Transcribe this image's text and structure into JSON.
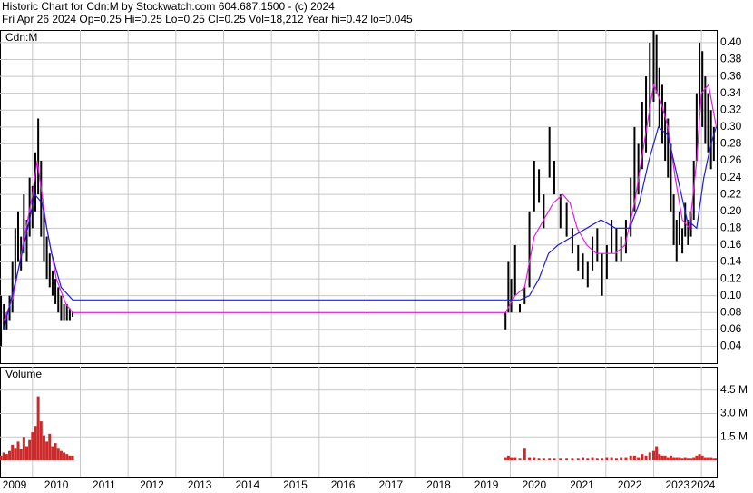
{
  "header": {
    "line1": "Historic Chart for Cdn:M by Stockwatch.com 604.687.1500 - (c) 2024",
    "line2": "Fri Apr 26 2024  Op=0.25  Hi=0.25  Lo=0.25  Cl=0.25  Vol=18,212  Year hi=0.42  lo=0.045"
  },
  "chart_data": [
    {
      "type": "ohlc",
      "label": "Cdn:M",
      "color": "#000000",
      "xlim": [
        2009.32,
        2024.32
      ],
      "xticks": [
        2010,
        2011,
        2012,
        2013,
        2014,
        2015,
        2016,
        2017,
        2018,
        2019,
        2020,
        2021,
        2022,
        2023,
        2024
      ],
      "ylim": [
        0.02,
        0.415
      ],
      "yticks": [
        {
          "value": 0.04,
          "label": "0.04"
        },
        {
          "value": 0.06,
          "label": "0.06"
        },
        {
          "value": 0.08,
          "label": "0.08"
        },
        {
          "value": 0.1,
          "label": "0.10"
        },
        {
          "value": 0.12,
          "label": "0.12"
        },
        {
          "value": 0.14,
          "label": "0.14"
        },
        {
          "value": 0.16,
          "label": "0.16"
        },
        {
          "value": 0.18,
          "label": "0.18"
        },
        {
          "value": 0.2,
          "label": "0.20"
        },
        {
          "value": 0.22,
          "label": "0.22"
        },
        {
          "value": 0.24,
          "label": "0.24"
        },
        {
          "value": 0.26,
          "label": "0.26"
        },
        {
          "value": 0.28,
          "label": "0.28"
        },
        {
          "value": 0.3,
          "label": "0.30"
        },
        {
          "value": 0.32,
          "label": "0.32"
        },
        {
          "value": 0.34,
          "label": "0.34"
        },
        {
          "value": 0.36,
          "label": "0.36"
        },
        {
          "value": 0.38,
          "label": "0.38"
        },
        {
          "value": 0.4,
          "label": "0.40"
        }
      ],
      "grid": true,
      "x": [
        2009.34,
        2009.4,
        2009.46,
        2009.52,
        2009.58,
        2009.64,
        2009.7,
        2009.76,
        2009.82,
        2009.88,
        2009.94,
        2010.0,
        2010.06,
        2010.12,
        2010.18,
        2010.24,
        2010.3,
        2010.36,
        2010.42,
        2010.48,
        2010.54,
        2010.6,
        2010.66,
        2010.72,
        2010.78,
        2010.84,
        2019.9,
        2019.96,
        2020.02,
        2020.1,
        2020.2,
        2020.3,
        2020.4,
        2020.5,
        2020.6,
        2020.7,
        2020.82,
        2020.92,
        2021.05,
        2021.18,
        2021.3,
        2021.42,
        2021.52,
        2021.62,
        2021.72,
        2021.82,
        2021.92,
        2022.02,
        2022.12,
        2022.22,
        2022.32,
        2022.42,
        2022.52,
        2022.6,
        2022.68,
        2022.76,
        2022.84,
        2022.92,
        2023.0,
        2023.06,
        2023.12,
        2023.18,
        2023.24,
        2023.3,
        2023.36,
        2023.42,
        2023.48,
        2023.54,
        2023.6,
        2023.66,
        2023.72,
        2023.78,
        2023.84,
        2023.9,
        2023.96,
        2024.02,
        2024.08,
        2024.14,
        2024.2,
        2024.26,
        2024.31
      ],
      "high": [
        0.1,
        0.09,
        0.08,
        0.1,
        0.14,
        0.18,
        0.2,
        0.17,
        0.22,
        0.19,
        0.24,
        0.23,
        0.27,
        0.31,
        0.26,
        0.2,
        0.17,
        0.15,
        0.13,
        0.12,
        0.11,
        0.1,
        0.09,
        0.09,
        0.085,
        0.08,
        0.08,
        0.14,
        0.12,
        0.16,
        0.09,
        0.11,
        0.2,
        0.26,
        0.25,
        0.22,
        0.3,
        0.26,
        0.22,
        0.21,
        0.18,
        0.16,
        0.15,
        0.14,
        0.17,
        0.18,
        0.15,
        0.16,
        0.19,
        0.18,
        0.17,
        0.19,
        0.24,
        0.3,
        0.28,
        0.33,
        0.36,
        0.4,
        0.42,
        0.41,
        0.37,
        0.35,
        0.33,
        0.31,
        0.28,
        0.22,
        0.19,
        0.2,
        0.18,
        0.21,
        0.19,
        0.2,
        0.26,
        0.34,
        0.4,
        0.39,
        0.36,
        0.34,
        0.32,
        0.3,
        0.25
      ],
      "low": [
        0.04,
        0.06,
        0.06,
        0.07,
        0.08,
        0.12,
        0.14,
        0.13,
        0.15,
        0.14,
        0.17,
        0.18,
        0.2,
        0.22,
        0.17,
        0.14,
        0.12,
        0.11,
        0.1,
        0.09,
        0.08,
        0.07,
        0.07,
        0.07,
        0.07,
        0.075,
        0.06,
        0.08,
        0.08,
        0.1,
        0.08,
        0.09,
        0.11,
        0.2,
        0.21,
        0.18,
        0.24,
        0.22,
        0.18,
        0.17,
        0.15,
        0.13,
        0.12,
        0.11,
        0.13,
        0.14,
        0.1,
        0.12,
        0.15,
        0.14,
        0.14,
        0.15,
        0.17,
        0.2,
        0.22,
        0.25,
        0.27,
        0.3,
        0.33,
        0.34,
        0.3,
        0.28,
        0.26,
        0.24,
        0.2,
        0.16,
        0.14,
        0.16,
        0.15,
        0.17,
        0.16,
        0.17,
        0.19,
        0.26,
        0.32,
        0.3,
        0.28,
        0.27,
        0.25,
        0.26,
        0.25
      ],
      "lines": [
        {
          "color": "#e020e0",
          "x": [
            2009.4,
            2009.6,
            2009.8,
            2010.0,
            2010.1,
            2010.3,
            2010.5,
            2010.7,
            2010.84,
            2019.9,
            2020.1,
            2020.3,
            2020.5,
            2020.7,
            2020.9,
            2021.1,
            2021.25,
            2021.4,
            2021.6,
            2021.8,
            2022.0,
            2022.2,
            2022.4,
            2022.6,
            2022.8,
            2023.0,
            2023.15,
            2023.3,
            2023.45,
            2023.6,
            2023.75,
            2023.9,
            2024.0,
            2024.15,
            2024.31
          ],
          "values": [
            0.07,
            0.1,
            0.16,
            0.22,
            0.26,
            0.18,
            0.12,
            0.09,
            0.08,
            0.08,
            0.1,
            0.11,
            0.17,
            0.19,
            0.21,
            0.22,
            0.21,
            0.18,
            0.16,
            0.15,
            0.15,
            0.15,
            0.16,
            0.21,
            0.28,
            0.35,
            0.33,
            0.3,
            0.24,
            0.19,
            0.18,
            0.26,
            0.34,
            0.35,
            0.3
          ]
        },
        {
          "color": "#2020d0",
          "x": [
            2009.4,
            2009.7,
            2009.9,
            2010.05,
            2010.2,
            2010.4,
            2010.6,
            2010.84,
            2019.9,
            2020.2,
            2020.4,
            2020.6,
            2020.8,
            2021.0,
            2021.3,
            2021.6,
            2021.9,
            2022.2,
            2022.5,
            2022.7,
            2022.9,
            2023.1,
            2023.3,
            2023.5,
            2023.7,
            2023.9,
            2024.05,
            2024.2,
            2024.31
          ],
          "values": [
            0.06,
            0.13,
            0.18,
            0.22,
            0.21,
            0.15,
            0.11,
            0.095,
            0.095,
            0.095,
            0.1,
            0.12,
            0.15,
            0.16,
            0.17,
            0.18,
            0.19,
            0.18,
            0.18,
            0.21,
            0.26,
            0.3,
            0.29,
            0.24,
            0.19,
            0.18,
            0.24,
            0.28,
            0.3
          ]
        }
      ]
    },
    {
      "type": "bar",
      "label": "Volume",
      "color": "#cc2a2a",
      "xlim": [
        2009.32,
        2024.32
      ],
      "xticks": [
        2009,
        2010,
        2011,
        2012,
        2013,
        2014,
        2015,
        2016,
        2017,
        2018,
        2019,
        2020,
        2021,
        2022,
        2023,
        2024
      ],
      "ylim": [
        0,
        6
      ],
      "yticks": [
        {
          "value": 1.5,
          "label": "1.5 M"
        },
        {
          "value": 3.0,
          "label": "3.0 M"
        },
        {
          "value": 4.5,
          "label": "4.5 M"
        }
      ],
      "grid": true,
      "x": [
        2009.34,
        2009.4,
        2009.46,
        2009.52,
        2009.58,
        2009.64,
        2009.7,
        2009.76,
        2009.82,
        2009.88,
        2009.94,
        2010.0,
        2010.06,
        2010.12,
        2010.18,
        2010.24,
        2010.3,
        2010.36,
        2010.42,
        2010.48,
        2010.54,
        2010.6,
        2010.66,
        2010.72,
        2010.78,
        2010.84,
        2019.9,
        2019.96,
        2020.02,
        2020.1,
        2020.2,
        2020.3,
        2020.4,
        2020.5,
        2020.6,
        2020.7,
        2020.82,
        2020.92,
        2021.05,
        2021.18,
        2021.3,
        2021.42,
        2021.52,
        2021.62,
        2021.72,
        2021.82,
        2021.92,
        2022.02,
        2022.12,
        2022.22,
        2022.32,
        2022.42,
        2022.52,
        2022.6,
        2022.68,
        2022.76,
        2022.84,
        2022.92,
        2023.0,
        2023.06,
        2023.12,
        2023.18,
        2023.24,
        2023.3,
        2023.36,
        2023.42,
        2023.48,
        2023.54,
        2023.6,
        2023.66,
        2023.72,
        2023.78,
        2023.84,
        2023.9,
        2023.96,
        2024.02,
        2024.08,
        2024.14,
        2024.2,
        2024.26,
        2024.31
      ],
      "values": [
        0.3,
        0.5,
        0.4,
        0.6,
        1.0,
        0.8,
        1.2,
        0.7,
        1.5,
        0.9,
        1.3,
        1.8,
        2.2,
        4.1,
        2.5,
        1.6,
        1.2,
        1.7,
        0.9,
        1.1,
        0.8,
        0.6,
        0.5,
        0.4,
        0.3,
        0.3,
        0.2,
        0.3,
        0.2,
        0.2,
        0.1,
        0.8,
        0.2,
        0.2,
        0.1,
        0.1,
        0.1,
        0.1,
        0.1,
        0.1,
        0.1,
        0.1,
        0.2,
        0.1,
        0.2,
        0.1,
        0.1,
        0.2,
        0.2,
        0.1,
        0.2,
        0.2,
        0.3,
        0.3,
        0.2,
        0.4,
        0.3,
        0.5,
        0.6,
        0.9,
        0.4,
        0.3,
        0.3,
        0.2,
        0.3,
        0.2,
        0.2,
        0.2,
        0.1,
        0.2,
        0.1,
        0.1,
        0.2,
        0.3,
        0.4,
        0.3,
        0.2,
        0.2,
        0.2,
        0.1,
        0.1
      ]
    }
  ]
}
